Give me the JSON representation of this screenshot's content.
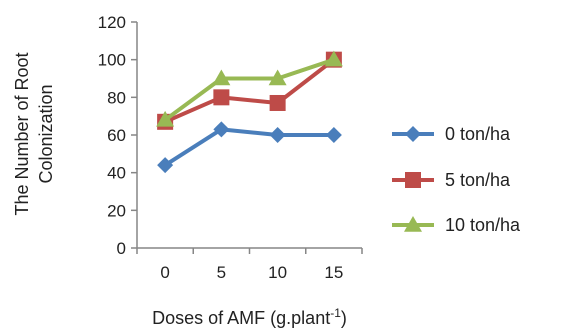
{
  "chart_data": {
    "type": "line",
    "x": [
      0,
      5,
      10,
      15
    ],
    "x_tick_labels": [
      "0",
      "5",
      "10",
      "15"
    ],
    "xlabel": "Doses of AMF (g.plant",
    "xlabel_superscript": "-1",
    "xlabel_suffix": ")",
    "ylabel_line1": "The Number of Root",
    "ylabel_line2": "Colonization",
    "ylim": [
      0,
      120
    ],
    "y_ticks": [
      0,
      20,
      40,
      60,
      80,
      100,
      120
    ],
    "grid": false,
    "legend_position": "right",
    "series": [
      {
        "name": "0 ton/ha",
        "values": [
          44,
          63,
          60,
          60
        ],
        "color": "#4a7ebb",
        "marker": "diamond"
      },
      {
        "name": "5 ton/ha",
        "values": [
          67,
          80,
          77,
          100
        ],
        "color": "#be4b48",
        "marker": "square"
      },
      {
        "name": "10 ton/ha",
        "values": [
          68,
          90,
          90,
          100
        ],
        "color": "#98b954",
        "marker": "triangle"
      }
    ]
  }
}
